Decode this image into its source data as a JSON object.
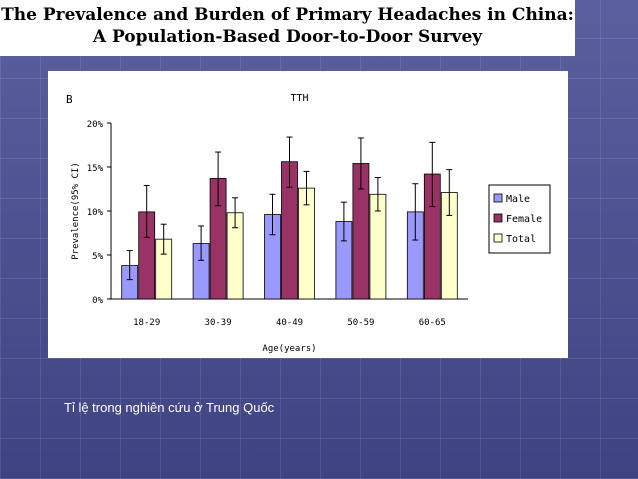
{
  "slide": {
    "title_line1": "The Prevalence and Burden of Primary Headaches in China:",
    "title_line2": "A Population-Based Door-to-Door Survey",
    "caption": "Tỉ lệ trong nghiên cứu ở Trung Quốc"
  },
  "chart_data": {
    "type": "bar",
    "panel_label": "B",
    "title": "TTH",
    "xlabel": "Age(years)",
    "ylabel": "Prevalence(95% CI)",
    "ylim": [
      0,
      20
    ],
    "yticks": [
      "0%",
      "5%",
      "10%",
      "15%",
      "20%"
    ],
    "categories": [
      "18-29",
      "30-39",
      "40-49",
      "50-59",
      "60-65"
    ],
    "series": [
      {
        "name": "Male",
        "color": "#9999ff",
        "values": [
          3.8,
          6.3,
          9.6,
          8.8,
          9.9
        ],
        "ci_low": [
          2.2,
          4.4,
          7.3,
          6.6,
          6.7
        ],
        "ci_high": [
          5.5,
          8.3,
          11.9,
          11.0,
          13.1
        ]
      },
      {
        "name": "Female",
        "color": "#993366",
        "values": [
          9.9,
          13.7,
          15.6,
          15.4,
          14.2
        ],
        "ci_low": [
          7.0,
          10.6,
          12.7,
          12.5,
          10.5
        ],
        "ci_high": [
          12.9,
          16.7,
          18.4,
          18.3,
          17.8
        ]
      },
      {
        "name": "Total",
        "color": "#ffffcc",
        "values": [
          6.8,
          9.8,
          12.6,
          11.9,
          12.1
        ],
        "ci_low": [
          5.1,
          8.1,
          10.7,
          10.0,
          9.5
        ],
        "ci_high": [
          8.5,
          11.5,
          14.5,
          13.8,
          14.7
        ]
      }
    ],
    "grid": false,
    "legend_position": "right"
  }
}
